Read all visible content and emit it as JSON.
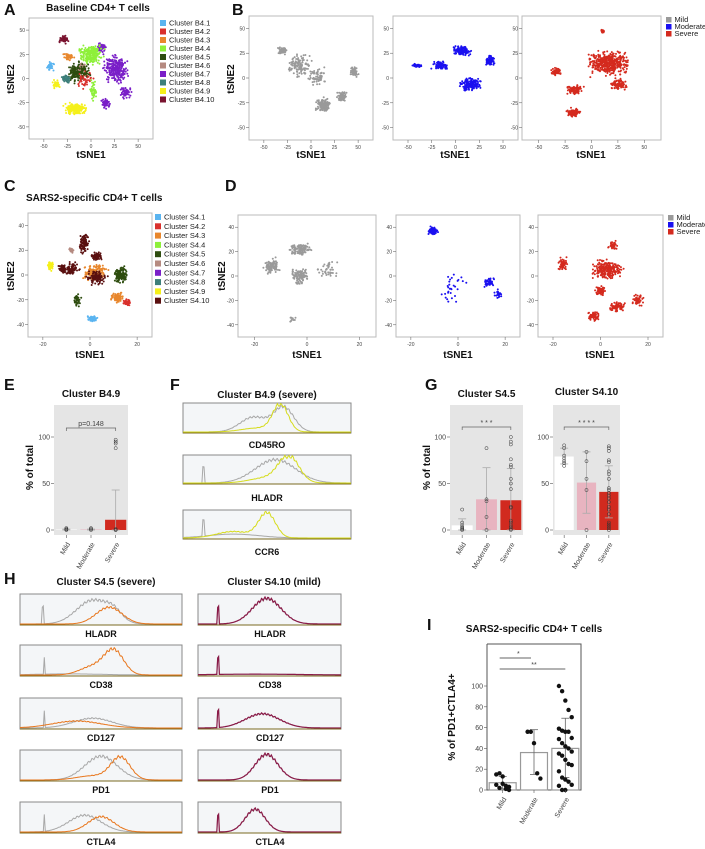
{
  "colors": {
    "mild": "#9a9a9a",
    "moderate": "#1a10f0",
    "severe": "#d42a1e",
    "bar_mild": "#ffffff",
    "bar_moderate": "#e8b4c0",
    "bar_severe": "#d12a1f",
    "hist_ref": "#a8a8a8",
    "hist_yellow": "#d6dc1c",
    "hist_orange": "#e8761c",
    "hist_maroon": "#8a1a48"
  },
  "panelA": {
    "letter": "A",
    "title": "Baseline CD4+ T cells",
    "xlabel": "tSNE1",
    "ylabel": "tSNE2",
    "xticks": [
      "-50",
      "-25",
      "0",
      "25",
      "50"
    ],
    "yticks": [
      "50",
      "25",
      "0",
      "-25",
      "-50"
    ],
    "legend": [
      {
        "label": "Cluster B4.1",
        "color": "#5ab4f0"
      },
      {
        "label": "Cluster B4.2",
        "color": "#d9302c"
      },
      {
        "label": "Cluster B4.3",
        "color": "#e8872d"
      },
      {
        "label": "Cluster B4.4",
        "color": "#8ef03a"
      },
      {
        "label": "Cluster B4.5",
        "color": "#2e4d0f"
      },
      {
        "label": "Cluster B4.6",
        "color": "#b58a80"
      },
      {
        "label": "Cluster B4.7",
        "color": "#7a1fc8"
      },
      {
        "label": "Cluster B4.8",
        "color": "#3d7f7a"
      },
      {
        "label": "Cluster B4.9",
        "color": "#f5f01a"
      },
      {
        "label": "Cluster B4.10",
        "color": "#7a1430"
      }
    ]
  },
  "panelB": {
    "letter": "B",
    "xlabel": "tSNE1",
    "ylabel": "tSNE2",
    "xticks": [
      "-50",
      "-25",
      "0",
      "25",
      "50"
    ],
    "yticks": [
      "50",
      "25",
      "0",
      "-25",
      "-50"
    ],
    "legend": [
      {
        "label": "Mild",
        "color": "#9a9a9a"
      },
      {
        "label": "Moderate",
        "color": "#1a10f0"
      },
      {
        "label": "Severe",
        "color": "#d42a1e"
      }
    ]
  },
  "panelC": {
    "letter": "C",
    "title": "SARS2-specific CD4+ T cells",
    "xlabel": "tSNE1",
    "ylabel": "tSNE2",
    "xticks": [
      "-20",
      "0",
      "20"
    ],
    "yticks": [
      "40",
      "20",
      "0",
      "-20",
      "-40"
    ],
    "legend": [
      {
        "label": "Cluster S4.1",
        "color": "#5ab4f0"
      },
      {
        "label": "Cluster S4.2",
        "color": "#d9302c"
      },
      {
        "label": "Cluster S4.3",
        "color": "#e8872d"
      },
      {
        "label": "Cluster S4.4",
        "color": "#8ef03a"
      },
      {
        "label": "Cluster S4.5",
        "color": "#2e4d0f"
      },
      {
        "label": "Cluster S4.6",
        "color": "#b58a80"
      },
      {
        "label": "Cluster S4.7",
        "color": "#7a1fc8"
      },
      {
        "label": "Cluster S4.8",
        "color": "#3d7f7a"
      },
      {
        "label": "Cluster S4.9",
        "color": "#f5f01a"
      },
      {
        "label": "Cluster S4.10",
        "color": "#5a1010"
      }
    ]
  },
  "panelD": {
    "letter": "D",
    "xlabel": "tSNE1",
    "ylabel": "tSNE2",
    "xticks": [
      "-20",
      "0",
      "20"
    ],
    "yticks": [
      "40",
      "20",
      "0",
      "-20",
      "-40"
    ],
    "legend": [
      {
        "label": "Mild",
        "color": "#9a9a9a"
      },
      {
        "label": "Moderate",
        "color": "#1a10f0"
      },
      {
        "label": "Severe",
        "color": "#d42a1e"
      }
    ]
  },
  "panelE": {
    "letter": "E"
  },
  "panelF": {
    "letter": "F",
    "title": "Cluster B4.9 (severe)",
    "markers": [
      "CD45RO",
      "HLADR",
      "CCR6"
    ]
  },
  "panelG": {
    "letter": "G"
  },
  "panelH": {
    "letter": "H",
    "left_title": "Cluster S4.5 (severe)",
    "right_title": "Cluster S4.10 (mild)",
    "markers": [
      "HLADR",
      "CD38",
      "CD127",
      "PD1",
      "CTLA4"
    ]
  },
  "panelI": {
    "letter": "I"
  },
  "chart_data": [
    {
      "id": "E",
      "type": "bar",
      "title": "Cluster B4.9",
      "ylabel": "% of total",
      "xlabel": "",
      "categories": [
        "Mild",
        "Moderate",
        "Severe"
      ],
      "values": [
        0.5,
        0.5,
        11
      ],
      "error_high": [
        1,
        1,
        43
      ],
      "error_low": [
        0,
        0,
        0
      ],
      "points": [
        [
          0,
          1,
          2,
          0.5
        ],
        [
          0,
          1,
          2
        ],
        [
          97,
          95,
          93,
          88,
          0,
          0,
          1
        ]
      ],
      "yticks": [
        "0",
        "50",
        "100"
      ],
      "ylim": [
        0,
        115
      ],
      "annotations": [
        {
          "text": "p=0.148",
          "from": "Mild",
          "to": "Severe"
        }
      ]
    },
    {
      "id": "G1",
      "type": "bar",
      "title": "Cluster S4.5",
      "ylabel": "% of total",
      "xlabel": "",
      "categories": [
        "Mild",
        "Moderate",
        "Severe"
      ],
      "values": [
        5,
        33,
        32
      ],
      "error_high": [
        12,
        67,
        66
      ],
      "error_low": [
        0,
        0,
        0
      ],
      "points": [
        [
          22,
          8,
          5,
          3,
          2,
          1,
          0
        ],
        [
          88,
          33,
          31,
          14,
          0
        ],
        [
          100,
          95,
          92,
          76,
          70,
          68,
          55,
          50,
          44,
          25,
          24,
          10,
          8,
          5,
          3,
          1,
          0
        ]
      ],
      "yticks": [
        "0",
        "50",
        "100"
      ],
      "ylim": [
        0,
        115
      ],
      "annotations": [
        {
          "text": "* * *",
          "from": "Mild",
          "to": "Severe"
        }
      ]
    },
    {
      "id": "G2",
      "type": "bar",
      "title": "Cluster S4.10",
      "ylabel": "",
      "xlabel": "",
      "categories": [
        "Mild",
        "Moderate",
        "Severe"
      ],
      "values": [
        79,
        51,
        41
      ],
      "error_high": [
        88,
        84,
        69
      ],
      "error_low": [
        71,
        18,
        13
      ],
      "points": [
        [
          91,
          88,
          80,
          77,
          74,
          72,
          69
        ],
        [
          84,
          74,
          55,
          43,
          0
        ],
        [
          90,
          88,
          85,
          75,
          73,
          63,
          60,
          55,
          45,
          43,
          40,
          37,
          34,
          30,
          25,
          22,
          17,
          8,
          6,
          4,
          2,
          0
        ]
      ],
      "yticks": [
        "0",
        "50",
        "100"
      ],
      "ylim": [
        0,
        115
      ],
      "annotations": [
        {
          "text": "* * * *",
          "from": "Mild",
          "to": "Severe"
        }
      ]
    },
    {
      "id": "I",
      "type": "bar",
      "title": "SARS2-specific CD4+ T cells",
      "ylabel": "% of PD1+CTLA4+",
      "xlabel": "",
      "categories": [
        "Mild",
        "Moderate",
        "Severe"
      ],
      "values": [
        7,
        36,
        40
      ],
      "error_high": [
        13,
        58,
        69
      ],
      "error_low": [
        1,
        15,
        12
      ],
      "points": [
        [
          15,
          16,
          13,
          4,
          3,
          5,
          2,
          6,
          1,
          0
        ],
        [
          56,
          56,
          45,
          16,
          11
        ],
        [
          100,
          95,
          86,
          77,
          70,
          59,
          57,
          56,
          56,
          50,
          49,
          45,
          42,
          40,
          37,
          35,
          33,
          29,
          25,
          24,
          18,
          12,
          10,
          8,
          5,
          4,
          0,
          0
        ]
      ],
      "yticks": [
        "0",
        "20",
        "40",
        "60",
        "80",
        "100"
      ],
      "ylim": [
        0,
        130
      ],
      "annotations": [
        {
          "text": "*",
          "from": "Mild",
          "to": "Moderate"
        },
        {
          "text": "**",
          "from": "Mild",
          "to": "Severe"
        }
      ]
    }
  ]
}
